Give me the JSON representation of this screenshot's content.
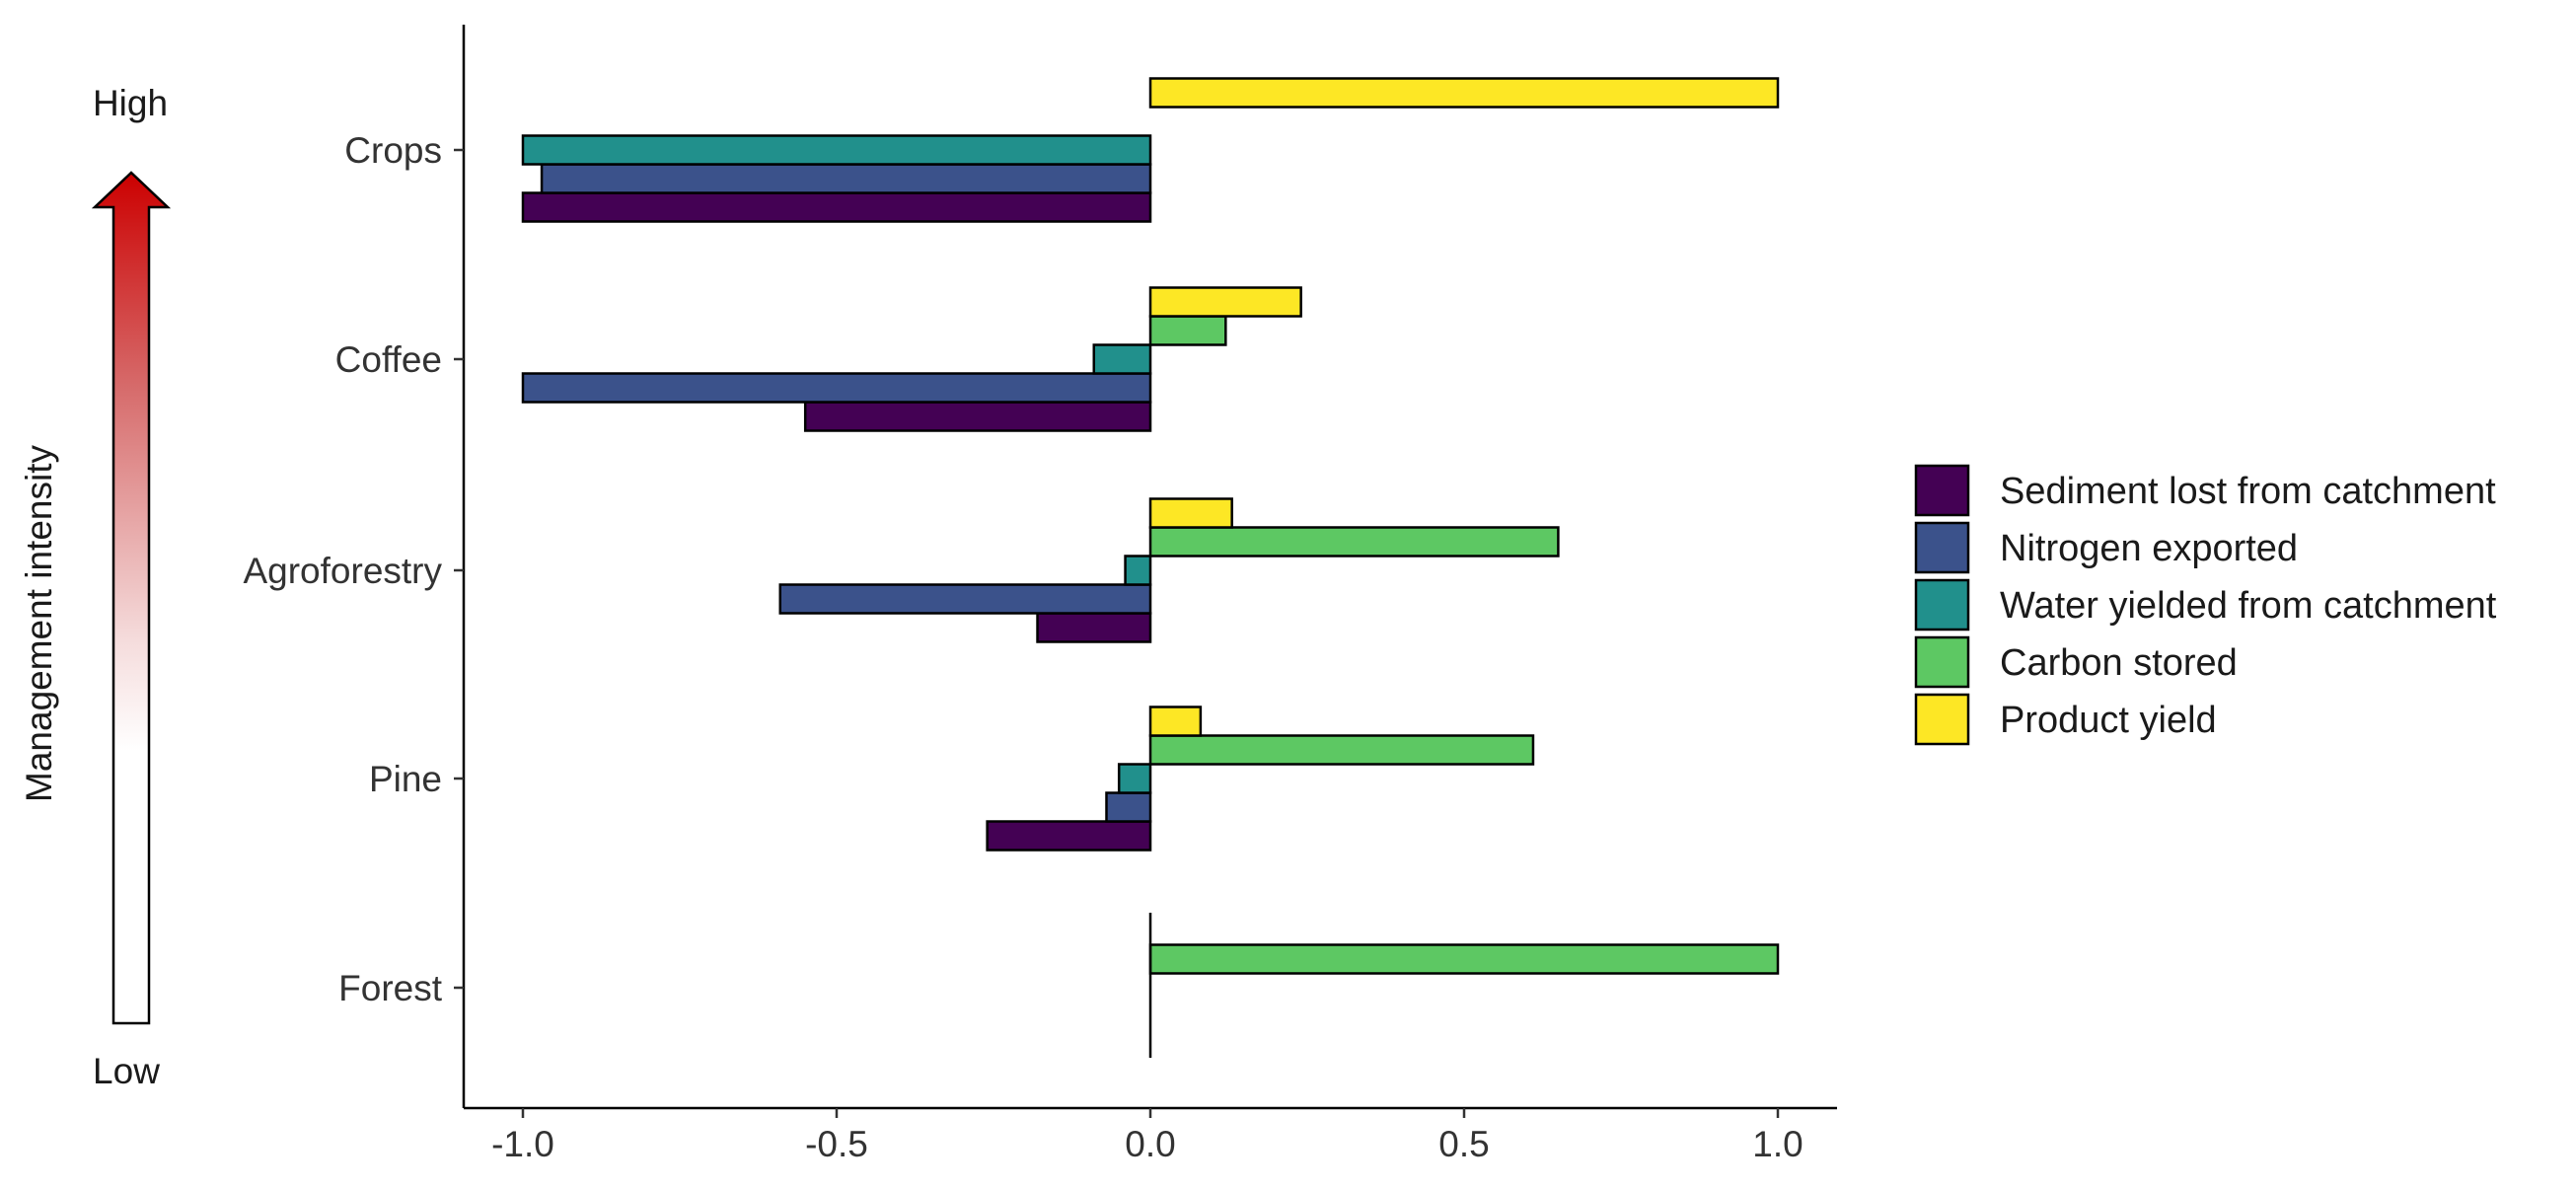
{
  "chart_data": {
    "type": "bar",
    "orientation": "horizontal",
    "categories": [
      "Crops",
      "Coffee",
      "Agroforestry",
      "Pine",
      "Forest"
    ],
    "xlim": [
      -1.1,
      1.1
    ],
    "x_ticks": [
      "-1.0",
      "-0.5",
      "0.0",
      "0.5",
      "1.0"
    ],
    "x_tick_values": [
      -1.0,
      -0.5,
      0.0,
      0.5,
      1.0
    ],
    "xlabel": "",
    "ylabel": "",
    "grid": false,
    "legend_position": "right",
    "series": [
      {
        "name": "Sediment lost from catchment",
        "color": "#440154",
        "values": [
          -1.0,
          -0.55,
          -0.18,
          -0.26,
          0.0
        ]
      },
      {
        "name": "Nitrogen exported",
        "color": "#3b528b",
        "values": [
          -0.97,
          -1.0,
          -0.59,
          -0.07,
          0.0
        ]
      },
      {
        "name": "Water yielded from catchment",
        "color": "#21908c",
        "values": [
          -1.0,
          -0.09,
          -0.04,
          -0.05,
          0.0
        ]
      },
      {
        "name": "Carbon stored",
        "color": "#5dc863",
        "values": [
          0.0,
          0.12,
          0.65,
          0.61,
          1.0
        ]
      },
      {
        "name": "Product yield",
        "color": "#fde725",
        "values": [
          1.0,
          0.24,
          0.13,
          0.08,
          0.0
        ]
      }
    ]
  },
  "intensity": {
    "axis_label": "Management intensity",
    "high_label": "High",
    "low_label": "Low",
    "gradient_top_color": "#cc0000",
    "gradient_bottom_color": "#ffffff"
  }
}
